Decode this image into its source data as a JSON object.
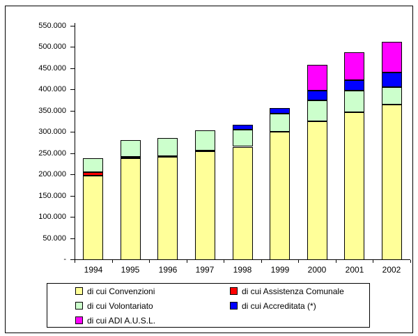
{
  "chart_data": {
    "type": "bar",
    "stacked": true,
    "title": "",
    "xlabel": "",
    "ylabel": "",
    "categories": [
      "1994",
      "1995",
      "1996",
      "1997",
      "1998",
      "1999",
      "2000",
      "2001",
      "2002"
    ],
    "series": [
      {
        "name": "di cui Convenzioni",
        "color": "#FFFF99",
        "values": [
          199000,
          240000,
          243000,
          256000,
          266000,
          302000,
          326000,
          347000,
          365000
        ]
      },
      {
        "name": "di cui Assistenza Comunale",
        "color": "#FF0000",
        "values": [
          8000,
          2000,
          2000,
          2000,
          0,
          0,
          0,
          0,
          0
        ]
      },
      {
        "name": "di cui Volontariato",
        "color": "#CCFFCC",
        "values": [
          32000,
          40000,
          42000,
          47000,
          40000,
          42000,
          49000,
          51000,
          41000
        ]
      },
      {
        "name": "di cui Accreditata (*)",
        "color": "#0000FF",
        "values": [
          0,
          0,
          0,
          0,
          12000,
          13000,
          23000,
          25000,
          35000
        ]
      },
      {
        "name": "di cui ADI A.U.S.L.",
        "color": "#FF00FF",
        "values": [
          0,
          0,
          0,
          0,
          0,
          0,
          61000,
          65000,
          72000
        ]
      }
    ],
    "totals": [
      239000,
      282000,
      287000,
      305000,
      318000,
      357000,
      459000,
      488000,
      513000
    ],
    "ylim": [
      0,
      550000
    ],
    "ytick_step": 50000,
    "ytick_labels": [
      "-",
      "50.000",
      "100.000",
      "150.000",
      "200.000",
      "250.000",
      "300.000",
      "350.000",
      "400.000",
      "450.000",
      "500.000",
      "550.000"
    ],
    "grid": false,
    "legend_position": "bottom",
    "bar_border_color": "#000000",
    "background_color": "#FFFFFF"
  }
}
